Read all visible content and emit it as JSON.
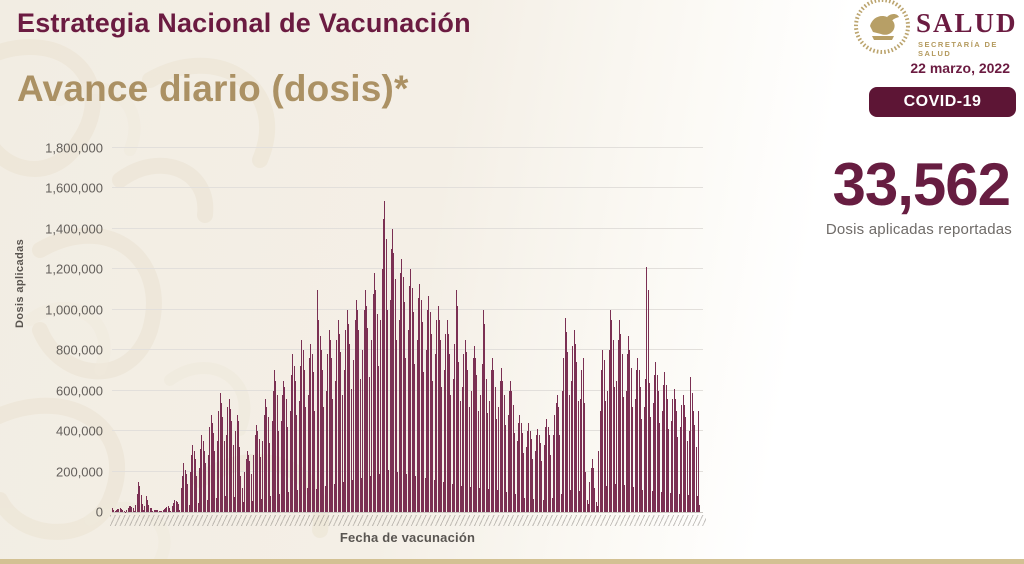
{
  "header": {
    "title": "Estrategia Nacional de Vacunación",
    "subtitle": "Avance diario (dosis)*",
    "logo_text": "SALUD",
    "logo_subtext": "SECRETARÍA DE SALUD",
    "date": "22 marzo, 2022",
    "badge": "COVID-19"
  },
  "kpi": {
    "value": "33,562",
    "caption": "Dosis aplicadas reportadas"
  },
  "colors": {
    "maroon_text": "#6b1b41",
    "gold_accent": "#ab9164",
    "badge_bg": "#5d1535",
    "bar": "#7b3053",
    "gridline": "#e2dfdb",
    "footer_strip": "#d3c193",
    "background_cream": "#f2ede3"
  },
  "chart_data": {
    "type": "bar",
    "title": "Avance diario (dosis)",
    "xlabel": "Fecha de vacunación",
    "ylabel": "Dosis aplicadas",
    "ylim": [
      0,
      1800000
    ],
    "grid": true,
    "legend": false,
    "x_range_note": "barras diarias del 24-dic-2020 al 22-mar-2022 (etiquetas de fecha ilegibles en la imagen)",
    "y_ticks": [
      {
        "label": "0",
        "value": 0
      },
      {
        "label": "200,000",
        "value": 200000
      },
      {
        "label": "400,000",
        "value": 400000
      },
      {
        "label": "600,000",
        "value": 600000
      },
      {
        "label": "800,000",
        "value": 800000
      },
      {
        "label": "1,000,000",
        "value": 1000000
      },
      {
        "label": "1,200,000",
        "value": 1200000
      },
      {
        "label": "1,400,000",
        "value": 1400000
      },
      {
        "label": "1,600,000",
        "value": 1600000
      },
      {
        "label": "1,800,000",
        "value": 1800000
      }
    ],
    "values": [
      18000,
      12000,
      3000,
      10000,
      15000,
      17000,
      19000,
      14000,
      8000,
      5000,
      2000,
      12000,
      22000,
      28000,
      30000,
      26000,
      20000,
      6000,
      35000,
      90000,
      148000,
      128000,
      85000,
      40000,
      8000,
      30000,
      78000,
      60000,
      35000,
      22000,
      18000,
      5000,
      10000,
      12000,
      9000,
      8000,
      7000,
      6000,
      3000,
      10000,
      14000,
      18000,
      25000,
      30000,
      22000,
      6000,
      28000,
      45000,
      60000,
      55000,
      48000,
      38000,
      10000,
      120000,
      180000,
      240000,
      210000,
      190000,
      140000,
      35000,
      200000,
      280000,
      330000,
      300000,
      260000,
      180000,
      45000,
      220000,
      310000,
      380000,
      350000,
      300000,
      240000,
      60000,
      280000,
      420000,
      480000,
      440000,
      390000,
      300000,
      70000,
      350000,
      500000,
      590000,
      540000,
      470000,
      350000,
      80000,
      380000,
      520000,
      560000,
      510000,
      450000,
      330000,
      75000,
      400000,
      480000,
      450000,
      320000,
      180000,
      120000,
      50000,
      200000,
      260000,
      300000,
      280000,
      250000,
      190000,
      55000,
      280000,
      380000,
      430000,
      400000,
      360000,
      270000,
      65000,
      350000,
      480000,
      560000,
      520000,
      470000,
      340000,
      80000,
      450000,
      600000,
      700000,
      650000,
      580000,
      400000,
      90000,
      450000,
      580000,
      650000,
      620000,
      560000,
      420000,
      100000,
      500000,
      680000,
      780000,
      720000,
      650000,
      480000,
      110000,
      550000,
      720000,
      850000,
      800000,
      700000,
      520000,
      120000,
      580000,
      760000,
      830000,
      780000,
      690000,
      500000,
      115000,
      1100000,
      950000,
      870000,
      800000,
      700000,
      520000,
      130000,
      600000,
      780000,
      900000,
      850000,
      760000,
      560000,
      140000,
      650000,
      850000,
      950000,
      880000,
      790000,
      580000,
      150000,
      700000,
      900000,
      1000000,
      930000,
      830000,
      610000,
      160000,
      750000,
      950000,
      1050000,
      1000000,
      900000,
      660000,
      170000,
      800000,
      1000000,
      1100000,
      1020000,
      910000,
      670000,
      180000,
      850000,
      1080000,
      1180000,
      1100000,
      980000,
      720000,
      190000,
      950000,
      1200000,
      1450000,
      1540000,
      1350000,
      1000000,
      210000,
      1050000,
      1300000,
      1400000,
      1280000,
      1150000,
      850000,
      200000,
      950000,
      1180000,
      1250000,
      1160000,
      1040000,
      760000,
      190000,
      900000,
      1120000,
      1200000,
      1110000,
      990000,
      730000,
      180000,
      850000,
      1060000,
      1130000,
      1050000,
      940000,
      690000,
      170000,
      800000,
      1000000,
      1070000,
      990000,
      880000,
      650000,
      160000,
      780000,
      950000,
      1020000,
      950000,
      850000,
      620000,
      150000,
      700000,
      880000,
      950000,
      880000,
      780000,
      580000,
      140000,
      660000,
      830000,
      1100000,
      1020000,
      740000,
      550000,
      130000,
      620000,
      780000,
      850000,
      790000,
      700000,
      520000,
      125000,
      600000,
      760000,
      820000,
      760000,
      680000,
      500000,
      120000,
      580000,
      730000,
      1000000,
      930000,
      660000,
      490000,
      115000,
      550000,
      700000,
      760000,
      700000,
      620000,
      460000,
      110000,
      520000,
      650000,
      710000,
      650000,
      580000,
      430000,
      100000,
      480000,
      600000,
      650000,
      600000,
      530000,
      390000,
      90000,
      350000,
      440000,
      480000,
      440000,
      390000,
      290000,
      70000,
      320000,
      400000,
      440000,
      400000,
      360000,
      260000,
      65000,
      300000,
      380000,
      410000,
      380000,
      340000,
      250000,
      60000,
      330000,
      420000,
      460000,
      420000,
      380000,
      280000,
      68000,
      380000,
      480000,
      540000,
      580000,
      520000,
      380000,
      90000,
      600000,
      760000,
      960000,
      890000,
      790000,
      580000,
      110000,
      650000,
      820000,
      900000,
      830000,
      740000,
      550000,
      105000,
      560000,
      700000,
      760000,
      540000,
      200000,
      60000,
      40000,
      150000,
      220000,
      260000,
      220000,
      120000,
      50000,
      30000,
      300000,
      500000,
      700000,
      800000,
      750000,
      550000,
      130000,
      600000,
      800000,
      1000000,
      950000,
      850000,
      620000,
      140000,
      650000,
      850000,
      950000,
      880000,
      780000,
      570000,
      135000,
      600000,
      780000,
      870000,
      800000,
      710000,
      520000,
      125000,
      560000,
      700000,
      760000,
      700000,
      620000,
      460000,
      110000,
      520000,
      660000,
      1210000,
      1100000,
      640000,
      470000,
      105000,
      540000,
      680000,
      740000,
      680000,
      600000,
      440000,
      100000,
      500000,
      630000,
      690000,
      630000,
      560000,
      410000,
      95000,
      450000,
      560000,
      610000,
      560000,
      500000,
      370000,
      90000,
      420000,
      530000,
      580000,
      530000,
      470000,
      350000,
      85000,
      400000,
      670000,
      590000,
      500000,
      430000,
      320000,
      78000,
      500000,
      33562
    ]
  }
}
